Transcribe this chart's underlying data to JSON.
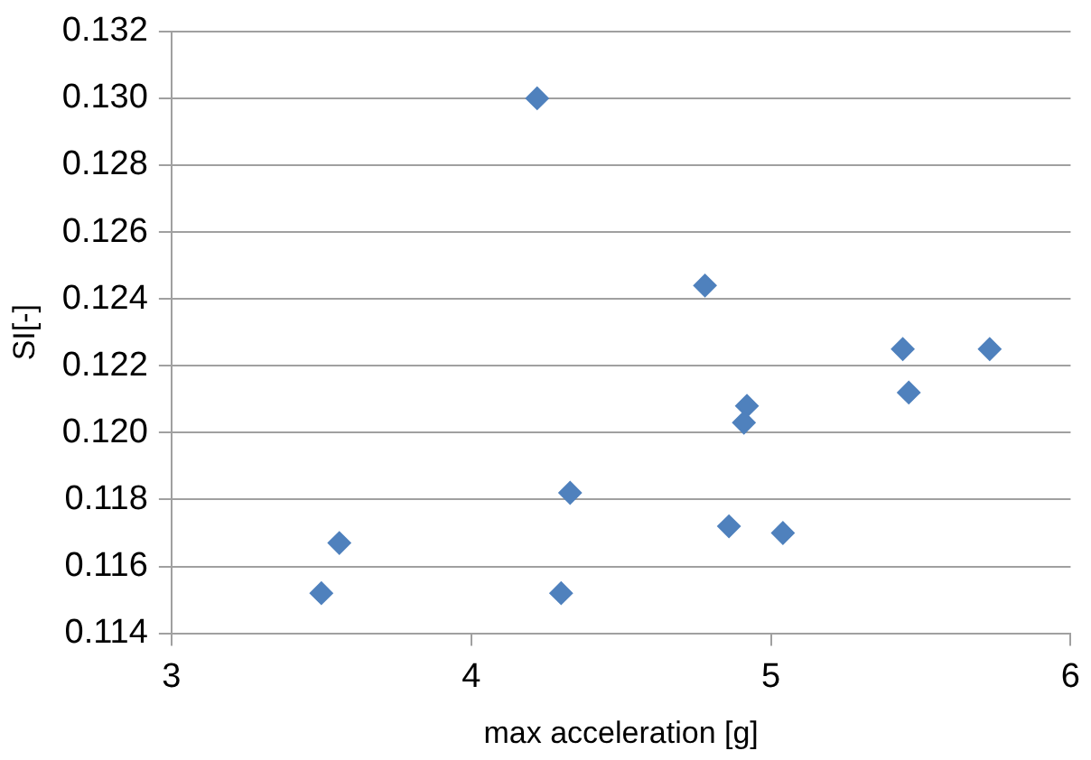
{
  "chart_data": {
    "type": "scatter",
    "xlabel": "max acceleration [g]",
    "ylabel": "SI[-]",
    "series": [
      {
        "color": "#4f81bd",
        "x": [
          4.22,
          4.78,
          5.44,
          5.73,
          5.46,
          4.92,
          4.91,
          4.33,
          4.86,
          5.04,
          3.56,
          3.5,
          4.3
        ],
        "values": [
          0.13,
          0.1244,
          0.1225,
          0.1225,
          0.1212,
          0.1208,
          0.1203,
          0.1182,
          0.1172,
          0.117,
          0.1167,
          0.1152,
          0.1152
        ]
      }
    ],
    "xlim": [
      3,
      6
    ],
    "xticks": [
      3,
      4,
      5,
      6
    ],
    "ylim": [
      0.114,
      0.132
    ],
    "yticks": [
      0.114,
      0.116,
      0.118,
      {
        "value": 0.12,
        "label": "0.120"
      },
      0.122,
      0.124,
      0.126,
      0.128,
      {
        "value": 0.13,
        "label": "0.130"
      },
      0.132
    ],
    "grid": "y",
    "legend": false,
    "marker": "diamond"
  }
}
